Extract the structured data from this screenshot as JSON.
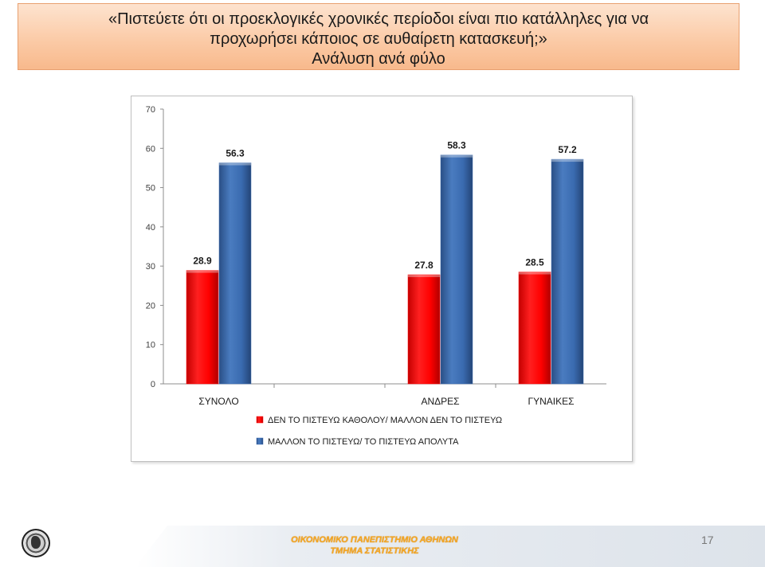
{
  "title": {
    "line1": "«Πιστεύετε ότι οι προεκλογικές χρονικές περίοδοι είναι πιο κατάλληλες για να",
    "line2": "προχωρήσει κάποιος σε αυθαίρετη κατασκευή;»",
    "line3": "Ανάλυση ανά φύλο"
  },
  "chart_data": {
    "type": "bar",
    "categories": [
      "ΣΥΝΟΛΟ",
      "",
      "ΑΝΔΡΕΣ",
      "ΓΥΝΑΙΚΕΣ"
    ],
    "series": [
      {
        "name": "ΔΕΝ ΤΟ ΠΙΣΤΕΥΩ ΚΑΘΟΛΟΥ/ ΜΑΛΛΟΝ ΔΕΝ ΤΟ ΠΙΣΤΕΥΩ",
        "values": [
          28.9,
          null,
          27.8,
          28.5
        ],
        "color": "#ff0000"
      },
      {
        "name": "ΜΑΛΛΟΝ ΤΟ ΠΙΣΤΕΥΩ/ ΤΟ ΠΙΣΤΕΥΩ ΑΠΟΛΥΤΑ",
        "values": [
          56.3,
          null,
          58.3,
          57.2
        ],
        "color": "#3a6bb0"
      }
    ],
    "ylim": [
      0,
      70
    ],
    "yticks": [
      "0",
      "10",
      "20",
      "30",
      "40",
      "50",
      "60",
      "70"
    ],
    "grid": false,
    "legend": "bottom"
  },
  "footer": {
    "org_line1": "ΟΙΚΟΝΟΜΙΚΟ ΠΑΝΕΠΙΣΤΗΜΙΟ ΑΘΗΝΩΝ",
    "org_line2": "ΤΜΗΜΑ ΣΤΑΤΙΣΤΙΚΗΣ",
    "page_number": "17"
  }
}
